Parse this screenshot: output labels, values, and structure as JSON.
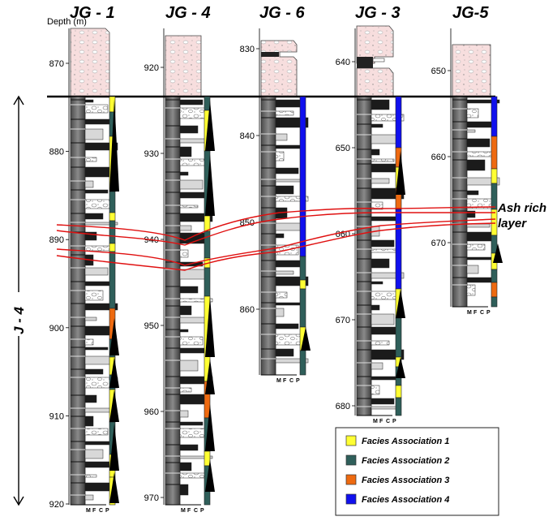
{
  "depth_unit_label": "Depth (m)",
  "unit_label": "J - 4",
  "ash_label_line1": "Ash rich",
  "ash_label_line2": "layer",
  "grain_scale": [
    "M",
    "F",
    "C",
    "P"
  ],
  "facies_legend": [
    {
      "label": "Facies Association 1",
      "color": "#ffff33"
    },
    {
      "label": "Facies Association 2",
      "color": "#2f5f5a"
    },
    {
      "label": "Facies Association 3",
      "color": "#ee6a10"
    },
    {
      "label": "Facies Association 4",
      "color": "#1010ee"
    }
  ],
  "wells": [
    {
      "name": "JG - 1",
      "depth_ticks": [
        "870",
        "880",
        "890",
        "900",
        "910",
        "920"
      ]
    },
    {
      "name": "JG - 4",
      "depth_ticks": [
        "920",
        "930",
        "940",
        "950",
        "960",
        "970"
      ]
    },
    {
      "name": "JG - 6",
      "depth_ticks": [
        "830",
        "840",
        "850",
        "860"
      ]
    },
    {
      "name": "JG - 3",
      "depth_ticks": [
        "640",
        "650",
        "660",
        "670",
        "680"
      ]
    },
    {
      "name": "JG-5",
      "depth_ticks": [
        "650",
        "660",
        "670"
      ]
    }
  ]
}
